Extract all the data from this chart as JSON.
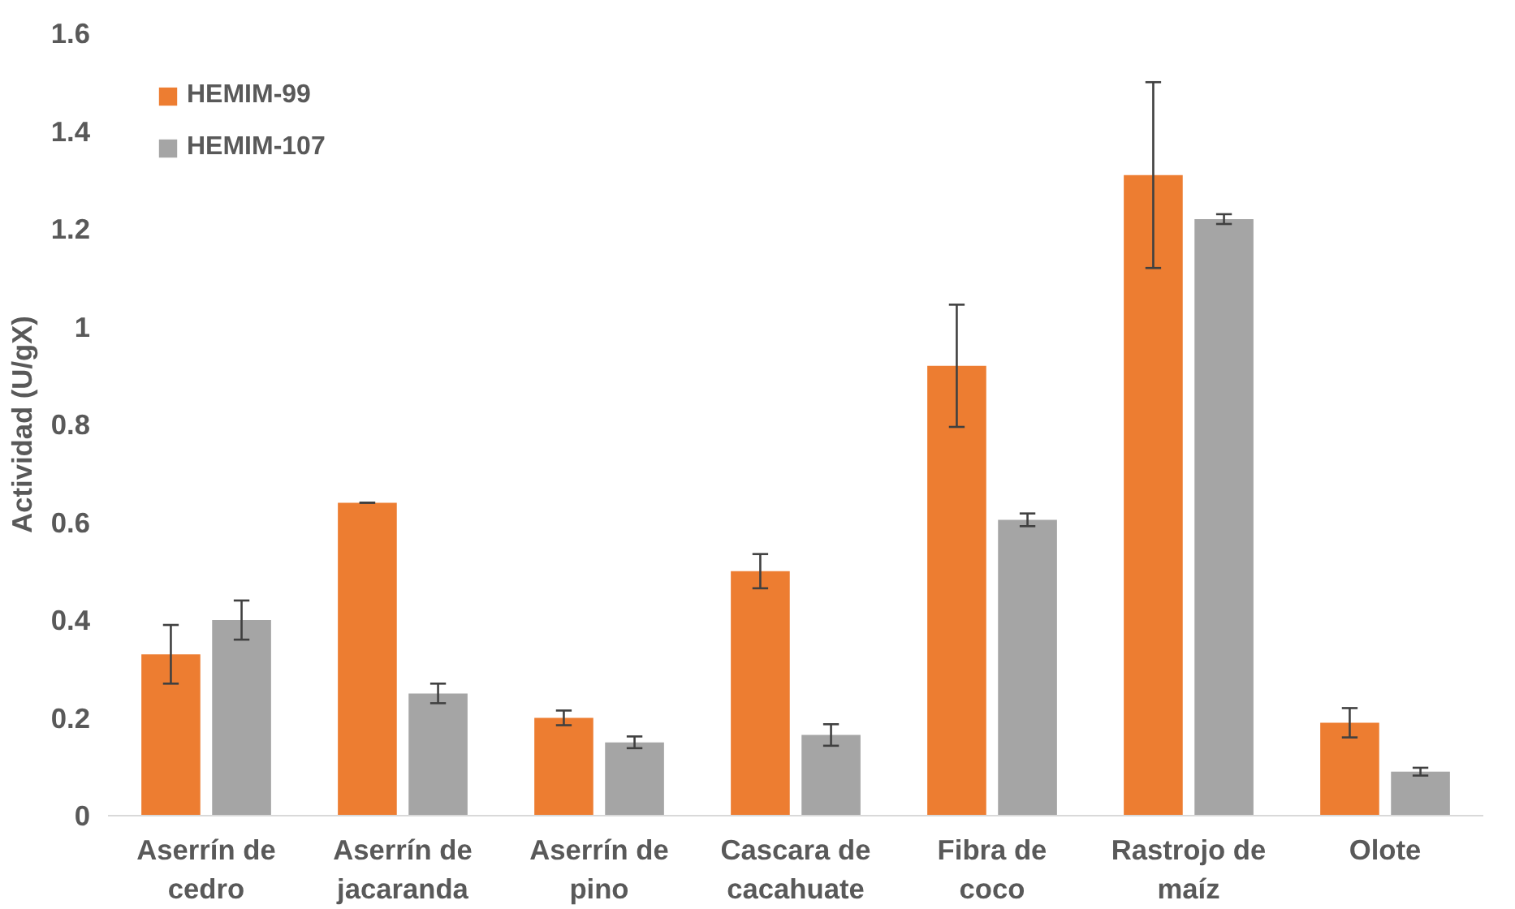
{
  "chart_data": {
    "type": "bar",
    "ylabel": "Actividad (U/gX)",
    "categories": [
      "Aserrín de\ncedro",
      "Aserrín de\njacaranda",
      "Aserrín de\npino",
      "Cascara de\ncacahuate",
      "Fibra de\ncoco",
      "Rastrojo de\nmaíz",
      "Olote"
    ],
    "series": [
      {
        "name": "HEMIM-99",
        "color": "#ed7d31",
        "values": [
          0.33,
          0.64,
          0.2,
          0.5,
          0.92,
          1.31,
          0.19
        ],
        "errors": [
          0.06,
          0,
          0.015,
          0.035,
          0.125,
          0.19,
          0.03
        ]
      },
      {
        "name": "HEMIM-107",
        "color": "#a5a5a5",
        "values": [
          0.4,
          0.25,
          0.15,
          0.165,
          0.605,
          1.22,
          0.09
        ],
        "errors": [
          0.04,
          0.02,
          0.012,
          0.022,
          0.013,
          0.01,
          0.008
        ]
      }
    ],
    "ylim": [
      0,
      1.6
    ],
    "yticks": [
      0,
      {
        "value": 0.2,
        "label": "0.2"
      },
      {
        "value": 0.4,
        "label": "0.4"
      },
      {
        "value": 0.6,
        "label": "0.6"
      },
      {
        "value": 0.8,
        "label": "0.8"
      },
      1,
      {
        "value": 1.2,
        "label": "1.2"
      },
      {
        "value": 1.4,
        "label": "1.4"
      },
      {
        "value": 1.6,
        "label": "1.6"
      }
    ],
    "grid": false,
    "legend": "top left"
  }
}
